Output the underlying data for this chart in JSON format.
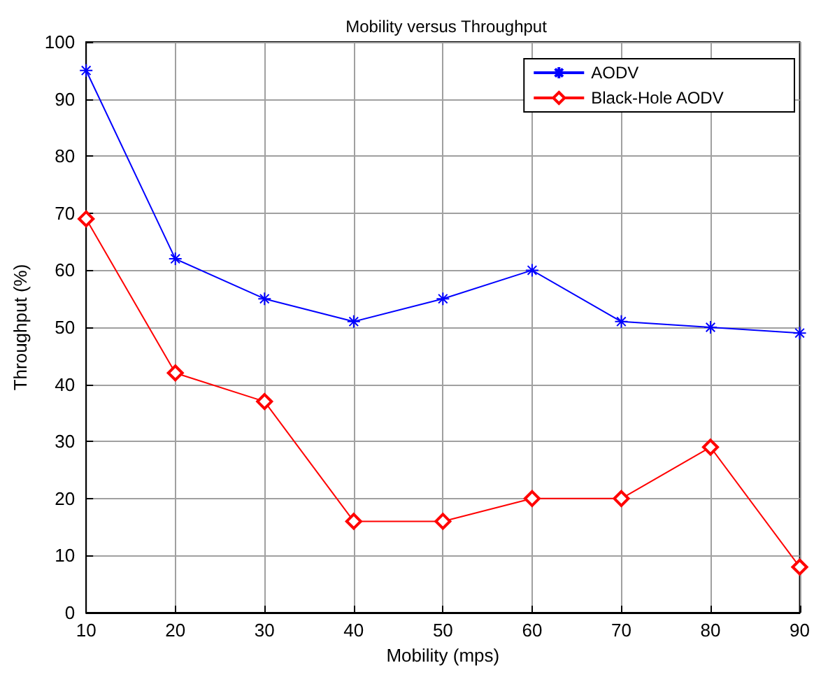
{
  "chart_data": {
    "type": "line",
    "title": "Mobility versus Throughput",
    "xlabel": "Mobility (mps)",
    "ylabel": "Throughput (%)",
    "x": [
      10,
      20,
      30,
      40,
      50,
      60,
      70,
      80,
      90
    ],
    "series": [
      {
        "name": "AODV",
        "color": "#0000ff",
        "marker": "cross",
        "values": [
          95,
          62,
          55,
          51,
          55,
          60,
          51,
          50,
          49
        ]
      },
      {
        "name": "Black-Hole AODV",
        "color": "#ff0000",
        "marker": "diamond",
        "values": [
          69,
          42,
          37,
          16,
          16,
          20,
          20,
          29,
          8
        ]
      }
    ],
    "xlim": [
      10,
      90
    ],
    "xticks": [
      10,
      20,
      30,
      40,
      50,
      60,
      70,
      80,
      90
    ],
    "ylim": [
      0,
      100
    ],
    "yticks": [
      0,
      10,
      20,
      30,
      40,
      50,
      60,
      70,
      80,
      90,
      100
    ],
    "grid": true,
    "legend": "top right",
    "line_style": "solid"
  }
}
